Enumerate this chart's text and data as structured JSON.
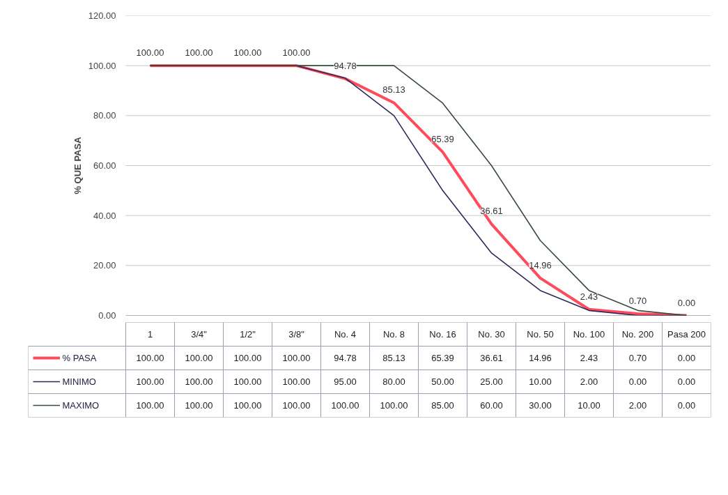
{
  "chart_data": {
    "type": "line",
    "ylabel": "% QUE PASA",
    "categories": [
      "1",
      "3/4\"",
      "1/2\"",
      "3/8\"",
      "No. 4",
      "No. 8",
      "No. 16",
      "No. 30",
      "No. 50",
      "No. 100",
      "No. 200",
      "Pasa 200"
    ],
    "series": [
      {
        "name": "% PASA",
        "color": "#ff4b5c",
        "values": [
          100.0,
          100.0,
          100.0,
          100.0,
          94.78,
          85.13,
          65.39,
          36.61,
          14.96,
          2.43,
          0.7,
          0.0
        ],
        "value_labels": [
          "100.00",
          "100.00",
          "100.00",
          "100.00",
          "94.78",
          "85.13",
          "65.39",
          "36.61",
          "14.96",
          "2.43",
          "0.70",
          "0.00"
        ]
      },
      {
        "name": "MINIMO",
        "color": "#2a2a5a",
        "values": [
          100.0,
          100.0,
          100.0,
          100.0,
          95.0,
          80.0,
          50.0,
          25.0,
          10.0,
          2.0,
          0.0,
          0.0
        ],
        "value_labels": [
          "100.00",
          "100.00",
          "100.00",
          "100.00",
          "95.00",
          "80.00",
          "50.00",
          "25.00",
          "10.00",
          "2.00",
          "0.00",
          "0.00"
        ]
      },
      {
        "name": "MAXIMO",
        "color": "#3a4a3a",
        "values": [
          100.0,
          100.0,
          100.0,
          100.0,
          100.0,
          100.0,
          85.0,
          60.0,
          30.0,
          10.0,
          2.0,
          0.0
        ],
        "value_labels": [
          "100.00",
          "100.00",
          "100.00",
          "100.00",
          "100.00",
          "100.00",
          "85.00",
          "60.00",
          "30.00",
          "10.00",
          "2.00",
          "0.00"
        ]
      }
    ],
    "ylim": [
      0,
      120
    ],
    "yticks": [
      {
        "value": 0,
        "label": "0.00"
      },
      {
        "value": 20,
        "label": "20.00"
      },
      {
        "value": 40,
        "label": "40.00"
      },
      {
        "value": 60,
        "label": "60.00"
      },
      {
        "value": 80,
        "label": "80.00"
      },
      {
        "value": 100,
        "label": "100.00"
      },
      {
        "value": 120,
        "label": "120.00"
      }
    ],
    "grid": "y",
    "legend": "bottom",
    "tick_labels": "y",
    "marker": "none",
    "line_style": "solid"
  }
}
